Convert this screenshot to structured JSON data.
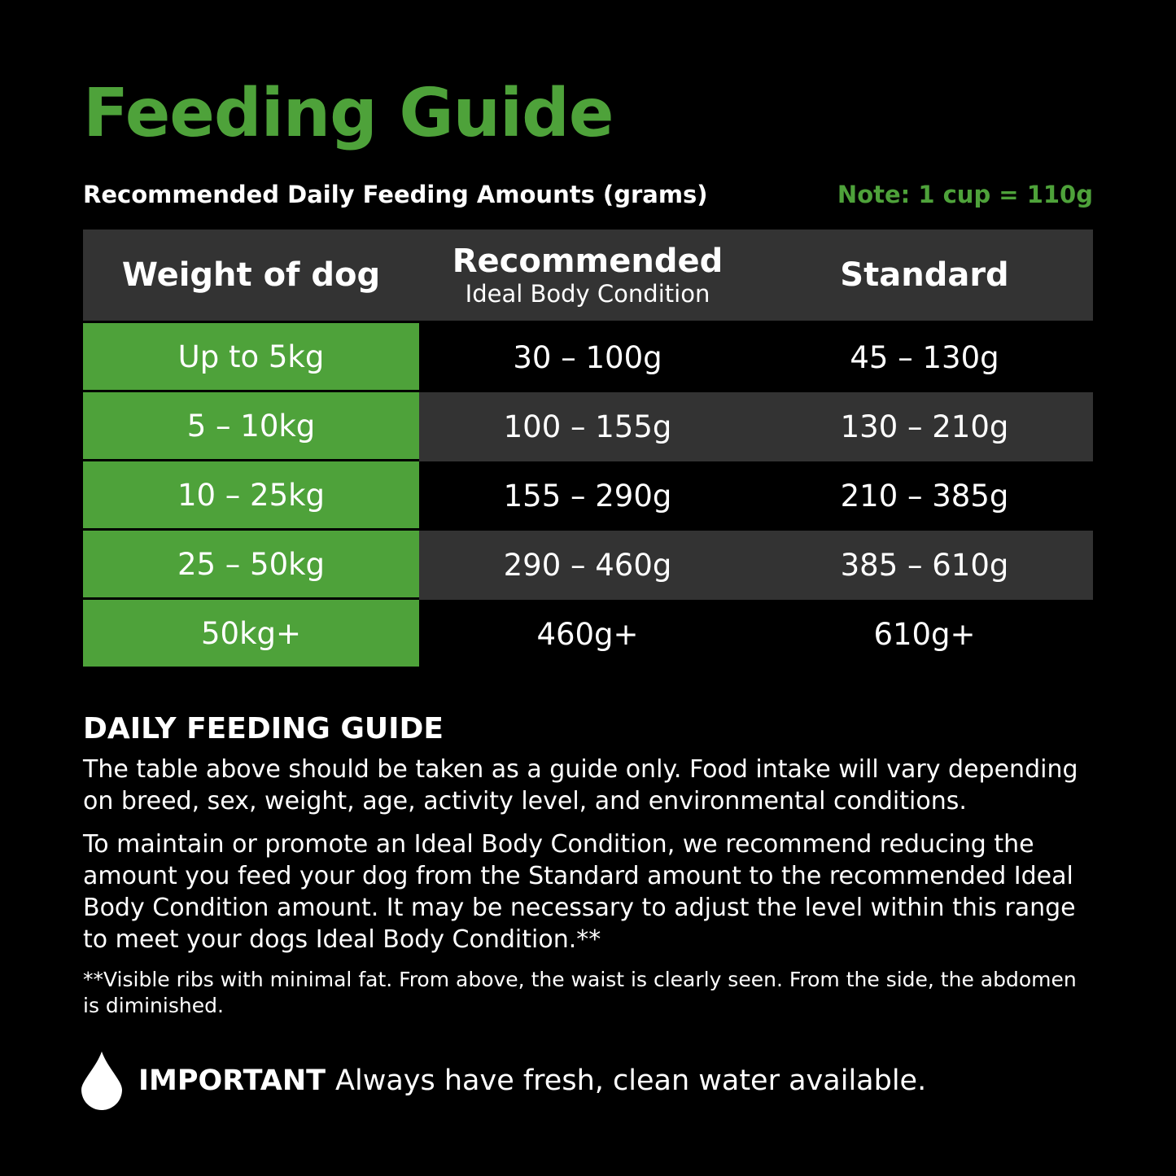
{
  "header": {
    "title": "Feeding Guide",
    "subtitle": "Recommended Daily Feeding Amounts (grams)",
    "note": "Note: 1 cup = 110g"
  },
  "table": {
    "columns": [
      {
        "label": "Weight of dog"
      },
      {
        "label": "Recommended",
        "sublabel": "Ideal Body Condition"
      },
      {
        "label": "Standard"
      }
    ],
    "rows": [
      [
        "Up to 5kg",
        "30 – 100g",
        "45 – 130g"
      ],
      [
        "5 – 10kg",
        "100 – 155g",
        "130 – 210g"
      ],
      [
        "10 – 25kg",
        "155 – 290g",
        "210 – 385g"
      ],
      [
        "25 – 50kg",
        "290 – 460g",
        "385 – 610g"
      ],
      [
        "50kg+",
        "460g+",
        "610g+"
      ]
    ]
  },
  "guide": {
    "heading": "DAILY FEEDING GUIDE",
    "paragraphs": [
      "The table above should be taken as a guide only. Food intake will vary depending on breed, sex, weight, age, activity level, and environmental conditions.",
      "To maintain or promote an Ideal Body Condition, we recommend reducing the amount you feed your dog from the Standard amount to the recommended Ideal Body Condition amount. It may be necessary to adjust the level within this range to meet your dogs Ideal Body Condition.**"
    ],
    "footnote": "**Visible ribs with minimal fat. From above, the waist is clearly seen. From the side, the abdomen is diminished."
  },
  "important": {
    "label": "IMPORTANT",
    "text": "Always have fresh, clean water available."
  }
}
